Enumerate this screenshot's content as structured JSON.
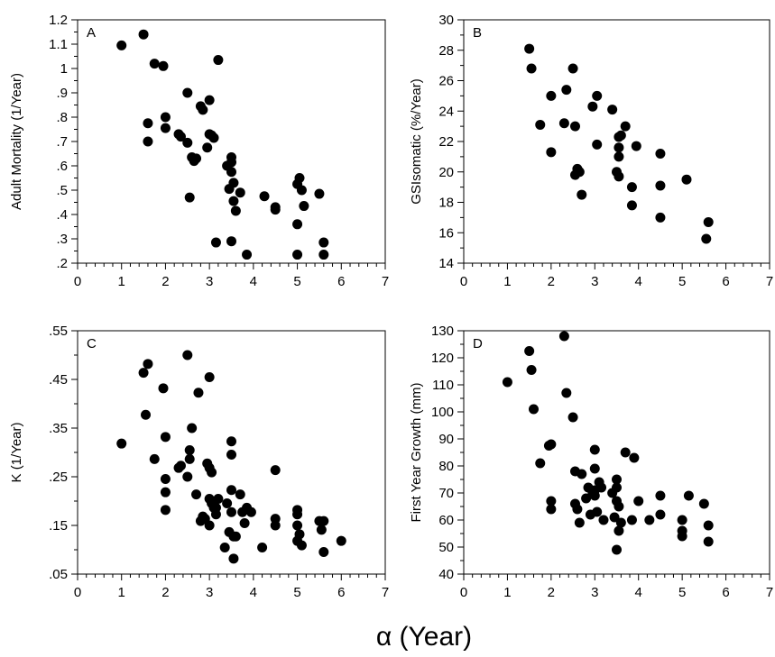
{
  "figure": {
    "xlabel": "α (Year)"
  },
  "chart_data": [
    {
      "type": "scatter",
      "panel": "A",
      "ylabel": "Adult Mortality (1/Year)",
      "xlim": [
        0,
        7
      ],
      "ylim": [
        0.2,
        1.2
      ],
      "x_ticks": [
        "0",
        "1",
        "2",
        "3",
        "4",
        "5",
        "6",
        "7"
      ],
      "y_ticks": [
        ".2",
        ".3",
        ".4",
        ".5",
        ".6",
        ".7",
        ".8",
        ".9",
        "1",
        "1.1",
        "1.2"
      ],
      "x": [
        1.0,
        1.5,
        1.6,
        1.6,
        1.75,
        1.95,
        2.0,
        2.0,
        2.3,
        2.35,
        2.5,
        2.5,
        2.55,
        2.6,
        2.65,
        2.7,
        2.8,
        2.85,
        2.95,
        3.0,
        3.0,
        3.05,
        3.1,
        3.15,
        3.2,
        3.4,
        3.45,
        3.5,
        3.5,
        3.5,
        3.5,
        3.55,
        3.55,
        3.6,
        3.7,
        3.85,
        4.25,
        4.5,
        4.5,
        5.0,
        5.0,
        5.0,
        5.05,
        5.1,
        5.15,
        5.5,
        5.6,
        5.6
      ],
      "y": [
        1.095,
        1.14,
        0.775,
        0.7,
        1.02,
        1.01,
        0.8,
        0.755,
        0.73,
        0.72,
        0.9,
        0.695,
        0.47,
        0.635,
        0.62,
        0.63,
        0.845,
        0.83,
        0.675,
        0.87,
        0.73,
        0.725,
        0.715,
        0.285,
        1.035,
        0.6,
        0.505,
        0.635,
        0.615,
        0.575,
        0.29,
        0.53,
        0.455,
        0.415,
        0.49,
        0.235,
        0.475,
        0.43,
        0.42,
        0.525,
        0.36,
        0.235,
        0.55,
        0.5,
        0.435,
        0.485,
        0.285,
        0.235
      ]
    },
    {
      "type": "scatter",
      "panel": "B",
      "ylabel": "GSIsomatic (%/Year)",
      "xlim": [
        0,
        7
      ],
      "ylim": [
        14,
        30
      ],
      "x_ticks": [
        "0",
        "1",
        "2",
        "3",
        "4",
        "5",
        "6",
        "7"
      ],
      "y_ticks": [
        "14",
        "16",
        "18",
        "20",
        "22",
        "24",
        "26",
        "28",
        "30"
      ],
      "x": [
        1.5,
        1.55,
        1.75,
        2.0,
        2.0,
        2.3,
        2.35,
        2.5,
        2.55,
        2.55,
        2.6,
        2.65,
        2.7,
        2.95,
        3.05,
        3.05,
        3.4,
        3.5,
        3.55,
        3.55,
        3.55,
        3.55,
        3.6,
        3.7,
        3.85,
        3.85,
        3.95,
        4.5,
        4.5,
        4.5,
        5.1,
        5.55,
        5.6
      ],
      "y": [
        28.1,
        26.8,
        23.1,
        25.0,
        21.3,
        23.2,
        25.4,
        26.8,
        23.0,
        19.8,
        20.2,
        20.0,
        18.5,
        24.3,
        25.0,
        21.8,
        24.1,
        20.0,
        19.7,
        21.6,
        21.0,
        22.3,
        22.4,
        23.0,
        19.0,
        17.8,
        21.7,
        21.2,
        19.1,
        17.0,
        19.5,
        15.6,
        16.7
      ]
    },
    {
      "type": "scatter",
      "panel": "C",
      "ylabel": "K (1/Year)",
      "xlim": [
        0,
        7
      ],
      "ylim": [
        0.05,
        0.6
      ],
      "x_ticks": [
        "0",
        "1",
        "2",
        "3",
        "4",
        "5",
        "6",
        "7"
      ],
      "y_ticks": [
        ".05",
        ".15",
        ".25",
        ".35",
        ".45",
        ".55"
      ],
      "x": [
        1.0,
        1.5,
        1.55,
        1.6,
        1.75,
        1.95,
        2.0,
        2.0,
        2.0,
        2.0,
        2.3,
        2.35,
        2.5,
        2.5,
        2.55,
        2.55,
        2.6,
        2.7,
        2.75,
        2.8,
        2.85,
        2.9,
        2.95,
        3.0,
        3.0,
        3.0,
        3.0,
        3.05,
        3.05,
        3.1,
        3.15,
        3.15,
        3.2,
        3.35,
        3.4,
        3.45,
        3.5,
        3.5,
        3.5,
        3.5,
        3.55,
        3.55,
        3.6,
        3.7,
        3.75,
        3.8,
        3.85,
        3.95,
        4.2,
        4.5,
        4.5,
        4.5,
        5.0,
        5.0,
        5.0,
        5.0,
        5.05,
        5.1,
        5.5,
        5.55,
        5.6,
        5.6,
        6.0
      ],
      "y": [
        0.345,
        0.505,
        0.41,
        0.525,
        0.31,
        0.47,
        0.36,
        0.265,
        0.235,
        0.195,
        0.29,
        0.295,
        0.545,
        0.27,
        0.33,
        0.31,
        0.38,
        0.23,
        0.46,
        0.17,
        0.18,
        0.175,
        0.3,
        0.495,
        0.29,
        0.22,
        0.16,
        0.28,
        0.21,
        0.2,
        0.2,
        0.185,
        0.22,
        0.11,
        0.21,
        0.145,
        0.35,
        0.32,
        0.24,
        0.19,
        0.135,
        0.085,
        0.135,
        0.23,
        0.19,
        0.165,
        0.2,
        0.19,
        0.11,
        0.285,
        0.175,
        0.16,
        0.195,
        0.185,
        0.16,
        0.125,
        0.14,
        0.115,
        0.17,
        0.15,
        0.17,
        0.1,
        0.125
      ]
    },
    {
      "type": "scatter",
      "panel": "D",
      "ylabel": "First Year Growth (mm)",
      "xlim": [
        0,
        7
      ],
      "ylim": [
        40,
        130
      ],
      "x_ticks": [
        "0",
        "1",
        "2",
        "3",
        "4",
        "5",
        "6",
        "7"
      ],
      "y_ticks": [
        "40",
        "50",
        "60",
        "70",
        "80",
        "90",
        "100",
        "110",
        "120",
        "130"
      ],
      "x": [
        1.0,
        1.5,
        1.55,
        1.6,
        1.75,
        1.95,
        2.0,
        2.0,
        2.0,
        2.3,
        2.35,
        2.5,
        2.55,
        2.55,
        2.6,
        2.65,
        2.7,
        2.8,
        2.85,
        2.9,
        2.95,
        3.0,
        3.0,
        3.0,
        3.0,
        3.05,
        3.1,
        3.15,
        3.2,
        3.4,
        3.45,
        3.5,
        3.5,
        3.5,
        3.5,
        3.55,
        3.55,
        3.6,
        3.7,
        3.85,
        3.9,
        4.0,
        4.25,
        4.5,
        4.5,
        5.0,
        5.0,
        5.0,
        5.15,
        5.5,
        5.6,
        5.6
      ],
      "y": [
        111,
        122.5,
        115.5,
        101,
        81,
        87.5,
        88,
        67,
        64,
        128,
        107,
        98,
        78,
        66,
        64,
        59,
        77,
        68,
        72,
        62,
        70,
        86,
        79,
        71,
        69,
        63,
        74,
        72,
        60,
        70,
        61,
        75,
        72,
        67,
        49,
        65,
        56,
        59,
        85,
        60,
        83,
        67,
        60,
        69,
        62,
        60,
        56,
        54,
        69,
        66,
        58,
        52
      ]
    }
  ]
}
